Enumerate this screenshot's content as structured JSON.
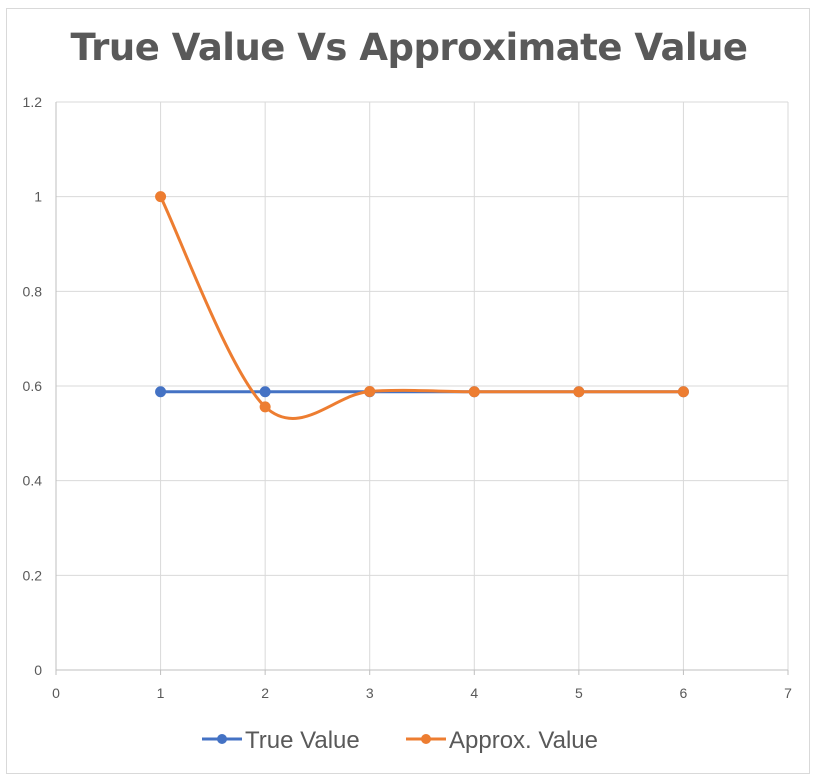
{
  "chart_data": {
    "type": "scatter",
    "title": "True Value Vs Approximate Value",
    "xlim": [
      0,
      7
    ],
    "ylim": [
      0,
      1.2
    ],
    "xticks": [
      "0",
      "1",
      "2",
      "3",
      "4",
      "5",
      "6",
      "7"
    ],
    "yticks": [
      "0",
      "0.2",
      "0.4",
      "0.6",
      "0.8",
      "1",
      "1.2"
    ],
    "grid": true,
    "legend_position": "bottom",
    "series": [
      {
        "name": "True Value",
        "color": "#4472C4",
        "smooth": false,
        "points": [
          [
            1,
            0.5878
          ],
          [
            2,
            0.5878
          ],
          [
            3,
            0.5878
          ],
          [
            4,
            0.5878
          ],
          [
            5,
            0.5878
          ],
          [
            6,
            0.5878
          ]
        ]
      },
      {
        "name": "Approx. Value",
        "color": "#ED7D31",
        "smooth": true,
        "points": [
          [
            1,
            1.0
          ],
          [
            2,
            0.556
          ],
          [
            3,
            0.5885
          ],
          [
            4,
            0.5878
          ],
          [
            5,
            0.5878
          ],
          [
            6,
            0.5878
          ]
        ]
      }
    ]
  }
}
